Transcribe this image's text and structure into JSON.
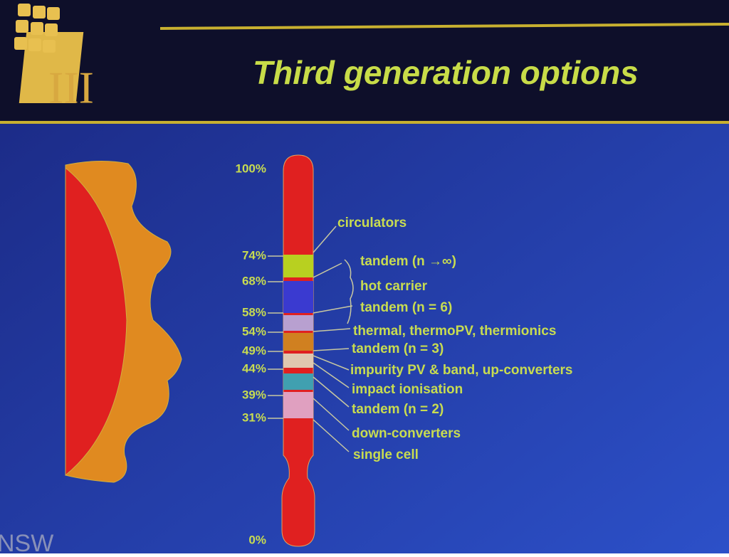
{
  "header": {
    "title": "Third generation options",
    "logo_text": "III"
  },
  "scale_labels": [
    "100%",
    "74%",
    "68%",
    "58%",
    "54%",
    "49%",
    "44%",
    "39%",
    "31%",
    "0%"
  ],
  "options": [
    "circulators",
    "tandem (n →∞)",
    "hot carrier",
    "tandem (n = 6)",
    "thermal, thermoPV, thermionics",
    "tandem (n = 3)",
    "impurity PV & band, up-converters",
    "impact ionisation",
    "tandem (n = 2)",
    "down-converters",
    "single cell"
  ],
  "footer": {
    "text": "NSW"
  }
}
